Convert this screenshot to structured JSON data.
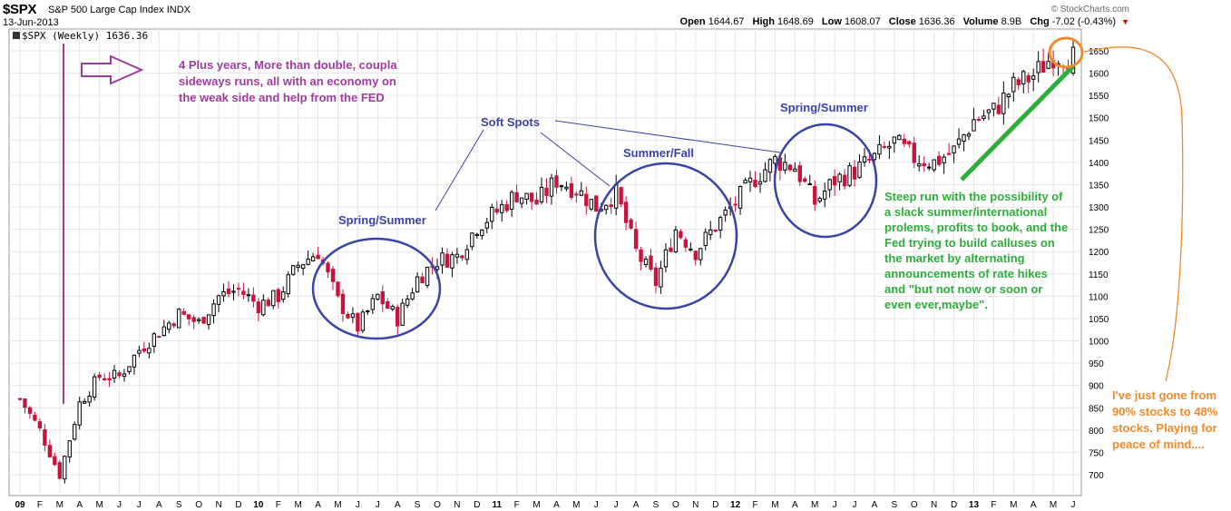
{
  "header": {
    "symbol": "$SPX",
    "name": "S&P 500 Large Cap Index",
    "exchange": "INDX",
    "date": "13-Jun-2013",
    "brand": "© StockCharts.com",
    "open_label": "Open",
    "open_value": "1644.67",
    "high_label": "High",
    "high_value": "1648.69",
    "low_label": "Low",
    "low_value": "1608.07",
    "close_label": "Close",
    "close_value": "1636.36",
    "volume_label": "Volume",
    "volume_value": "8.9B",
    "chg_label": "Chg",
    "chg_value": "-7.02 (-0.43%)",
    "chg_arrow": "▼"
  },
  "legend": {
    "text": "$SPX (Weekly) 1636.36"
  },
  "annotations": {
    "purple": "4 Plus years,  More than double, coupla\nsideways runs, all with an economy on\nthe weak side and help from the FED",
    "green": "Steep run with the possibility of\na slack summer/international\nprolems, profits to book, and the\nFed trying to build calluses on\nthe market by alternating\nannouncements of rate hikes\nand \"but not now or soon or\neven ever,maybe\".",
    "orange": "I've just gone from\n90% stocks to 48%\nstocks. Playing for\npeace of mind....",
    "soft_spots": "Soft Spots",
    "circle1": "Spring/Summer",
    "circle2": "Summer/Fall",
    "circle3": "Spring/Summer"
  },
  "colors": {
    "up": "#000000",
    "down": "#c8143c",
    "grid": "#e6e6e6",
    "purple": "#a03ca0",
    "blue": "#3a43a8",
    "green": "#2fad3b",
    "orange": "#f08a2b"
  },
  "chart_data": {
    "type": "candlestick",
    "title": "$SPX (Weekly)",
    "frequency": "weekly",
    "ylim": [
      650,
      1700
    ],
    "y_ticks": [
      700,
      750,
      800,
      850,
      900,
      950,
      1000,
      1050,
      1100,
      1150,
      1200,
      1250,
      1300,
      1350,
      1400,
      1450,
      1500,
      1550,
      1600,
      1650
    ],
    "x_labels": [
      "09",
      "F",
      "M",
      "A",
      "M",
      "J",
      "J",
      "A",
      "S",
      "O",
      "N",
      "D",
      "10",
      "F",
      "M",
      "A",
      "M",
      "J",
      "J",
      "A",
      "S",
      "O",
      "N",
      "D",
      "11",
      "F",
      "M",
      "A",
      "M",
      "J",
      "J",
      "A",
      "S",
      "O",
      "N",
      "D",
      "12",
      "F",
      "M",
      "A",
      "M",
      "J",
      "J",
      "A",
      "S",
      "O",
      "N",
      "D",
      "13",
      "F",
      "M",
      "A",
      "M",
      "J"
    ],
    "weekly_close_estimates": [
      {
        "date": "2009-01",
        "close": 870
      },
      {
        "date": "2009-02",
        "close": 800
      },
      {
        "date": "2009-03",
        "close": 700
      },
      {
        "date": "2009-04",
        "close": 860
      },
      {
        "date": "2009-05",
        "close": 920
      },
      {
        "date": "2009-06",
        "close": 920
      },
      {
        "date": "2009-07",
        "close": 980
      },
      {
        "date": "2009-08",
        "close": 1020
      },
      {
        "date": "2009-09",
        "close": 1060
      },
      {
        "date": "2009-10",
        "close": 1040
      },
      {
        "date": "2009-11",
        "close": 1100
      },
      {
        "date": "2009-12",
        "close": 1115
      },
      {
        "date": "2010-01",
        "close": 1080
      },
      {
        "date": "2010-02",
        "close": 1100
      },
      {
        "date": "2010-03",
        "close": 1170
      },
      {
        "date": "2010-04",
        "close": 1200
      },
      {
        "date": "2010-05",
        "close": 1090
      },
      {
        "date": "2010-06",
        "close": 1030
      },
      {
        "date": "2010-07",
        "close": 1100
      },
      {
        "date": "2010-08",
        "close": 1050
      },
      {
        "date": "2010-09",
        "close": 1140
      },
      {
        "date": "2010-10",
        "close": 1180
      },
      {
        "date": "2010-11",
        "close": 1190
      },
      {
        "date": "2010-12",
        "close": 1257
      },
      {
        "date": "2011-01",
        "close": 1290
      },
      {
        "date": "2011-02",
        "close": 1330
      },
      {
        "date": "2011-03",
        "close": 1310
      },
      {
        "date": "2011-04",
        "close": 1360
      },
      {
        "date": "2011-05",
        "close": 1340
      },
      {
        "date": "2011-06",
        "close": 1300
      },
      {
        "date": "2011-07",
        "close": 1330
      },
      {
        "date": "2011-08",
        "close": 1200
      },
      {
        "date": "2011-09",
        "close": 1130
      },
      {
        "date": "2011-10",
        "close": 1250
      },
      {
        "date": "2011-11",
        "close": 1200
      },
      {
        "date": "2011-12",
        "close": 1257
      },
      {
        "date": "2012-01",
        "close": 1310
      },
      {
        "date": "2012-02",
        "close": 1365
      },
      {
        "date": "2012-03",
        "close": 1405
      },
      {
        "date": "2012-04",
        "close": 1390
      },
      {
        "date": "2012-05",
        "close": 1310
      },
      {
        "date": "2012-06",
        "close": 1360
      },
      {
        "date": "2012-07",
        "close": 1380
      },
      {
        "date": "2012-08",
        "close": 1410
      },
      {
        "date": "2012-09",
        "close": 1445
      },
      {
        "date": "2012-10",
        "close": 1410
      },
      {
        "date": "2012-11",
        "close": 1400
      },
      {
        "date": "2012-12",
        "close": 1426
      },
      {
        "date": "2013-01",
        "close": 1495
      },
      {
        "date": "2013-02",
        "close": 1515
      },
      {
        "date": "2013-03",
        "close": 1570
      },
      {
        "date": "2013-04",
        "close": 1595
      },
      {
        "date": "2013-05",
        "close": 1640
      },
      {
        "date": "2013-06",
        "close": 1636
      }
    ]
  }
}
